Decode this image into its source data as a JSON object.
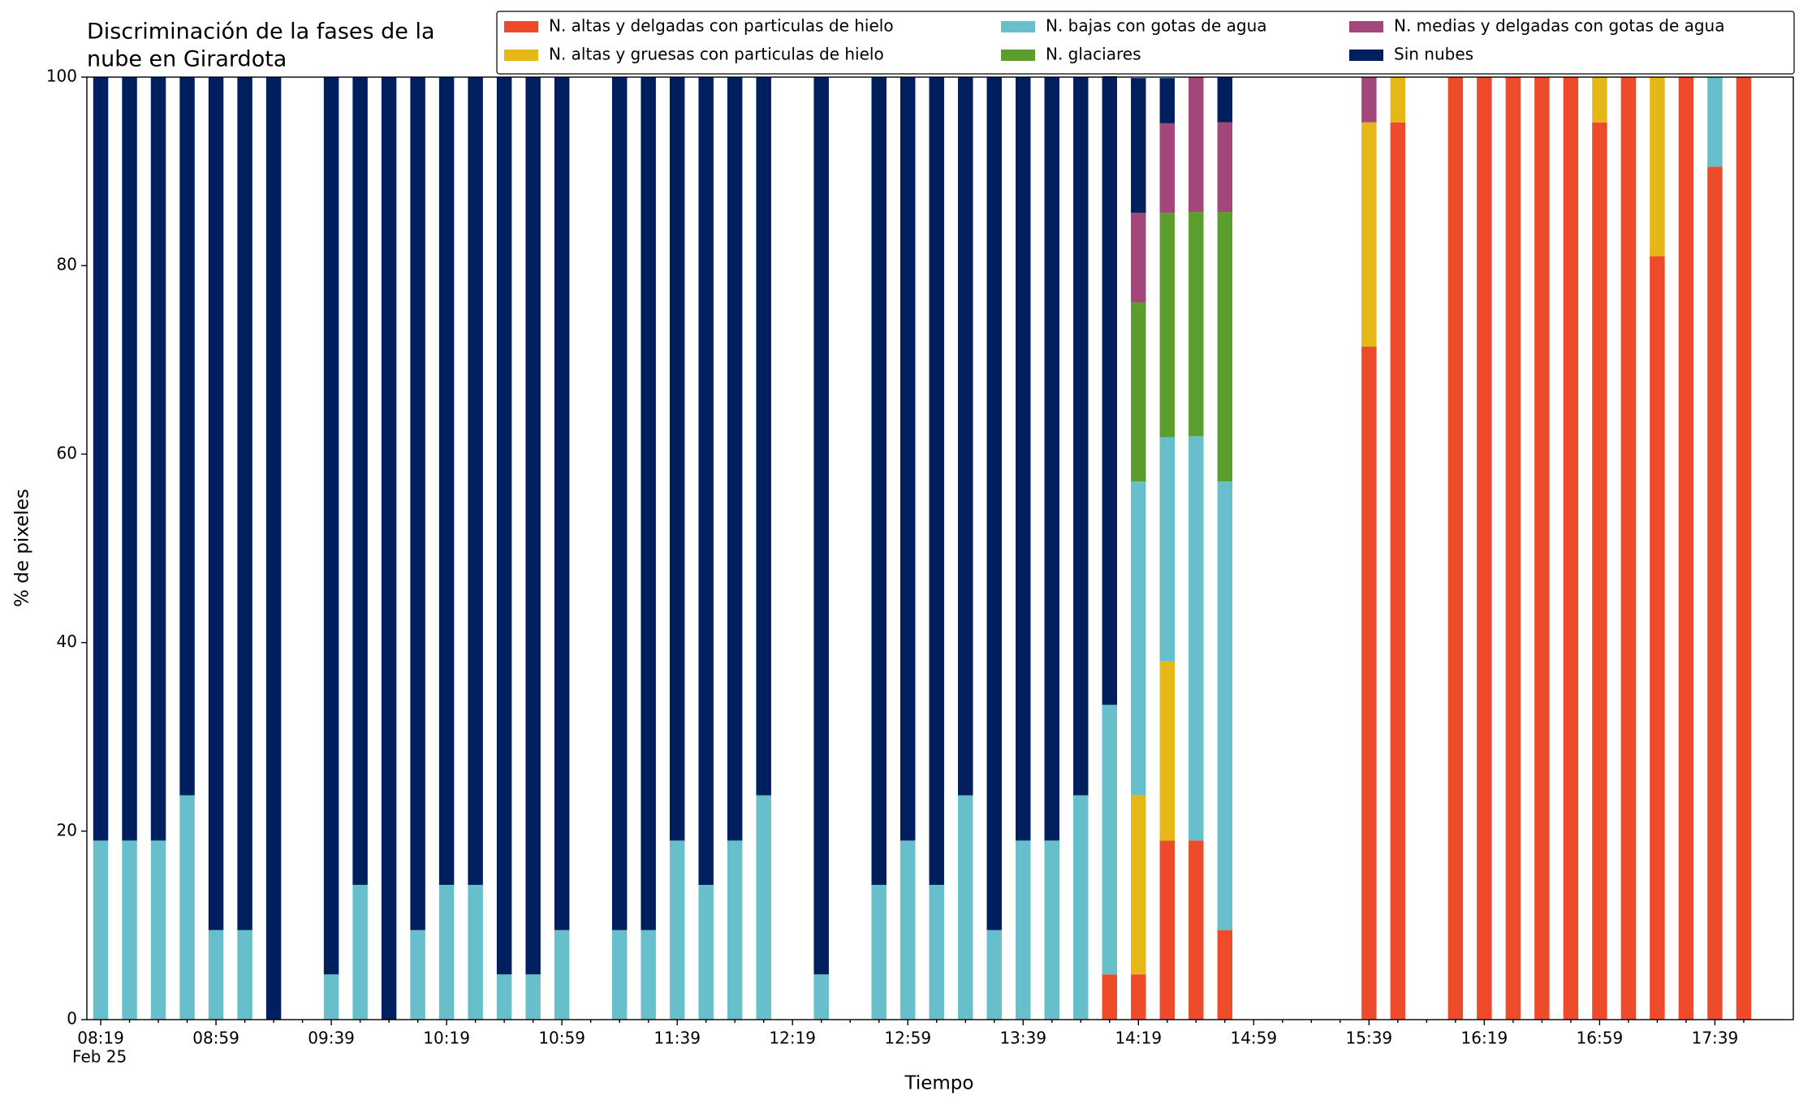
{
  "chart_data": {
    "type": "stacked_bar",
    "title": [
      "Discriminación de la fases de la",
      "nube en Girardota"
    ],
    "xlabel": "Tiempo",
    "ylabel": "% de pixeles",
    "date_label": "Feb 25",
    "categories": [
      "08:19",
      null,
      null,
      null,
      "08:59",
      null,
      null,
      null,
      "09:39",
      null,
      null,
      null,
      "10:19",
      null,
      null,
      null,
      "10:59",
      null,
      null,
      null,
      "11:39",
      null,
      null,
      null,
      "12:19",
      null,
      null,
      null,
      "12:59",
      null,
      null,
      null,
      "13:39",
      null,
      null,
      null,
      "14:19",
      null,
      null,
      null,
      "14:59",
      null,
      null,
      null,
      "15:39",
      null,
      null,
      null,
      "16:19",
      null,
      null,
      null,
      "16:59",
      null,
      null,
      null,
      "17:39",
      null
    ],
    "ylim": [
      0,
      100
    ],
    "yticks": [
      0,
      20,
      40,
      60,
      80,
      100
    ],
    "grid": false,
    "legend": "top",
    "series": [
      {
        "name": "N. altas y delgadas con particulas de hielo",
        "color": "#ee4b2b",
        "values": [
          0,
          0,
          0,
          0,
          0,
          0,
          0,
          0,
          0,
          0,
          0,
          0,
          0,
          0,
          0,
          0,
          0,
          0,
          0,
          0,
          0,
          0,
          0,
          0,
          0,
          0,
          0,
          0,
          0,
          0,
          0,
          0,
          0,
          0,
          0,
          4.8,
          4.8,
          19,
          19,
          9.5,
          0,
          0,
          0,
          0,
          71.4,
          95.2,
          0,
          100,
          100,
          100,
          100,
          100,
          95.2,
          100,
          81,
          100,
          90.5,
          100
        ]
      },
      {
        "name": "N. altas y gruesas con particulas de hielo",
        "color": "#e6b817",
        "values": [
          0,
          0,
          0,
          0,
          0,
          0,
          0,
          0,
          0,
          0,
          0,
          0,
          0,
          0,
          0,
          0,
          0,
          0,
          0,
          0,
          0,
          0,
          0,
          0,
          0,
          0,
          0,
          0,
          0,
          0,
          0,
          0,
          0,
          0,
          0,
          0,
          19,
          19,
          0,
          0,
          0,
          0,
          0,
          0,
          23.8,
          4.8,
          0,
          0,
          0,
          0,
          0,
          0,
          4.8,
          0,
          19,
          0,
          0,
          0
        ]
      },
      {
        "name": "N. bajas con gotas de agua",
        "color": "#66bfca",
        "values": [
          19,
          19,
          19,
          23.8,
          9.5,
          9.5,
          0,
          0,
          4.8,
          14.3,
          0,
          9.5,
          14.3,
          14.3,
          4.8,
          4.8,
          9.5,
          0,
          9.5,
          9.5,
          19,
          14.3,
          19,
          23.8,
          0,
          4.8,
          0,
          14.3,
          19,
          14.3,
          23.8,
          9.5,
          19,
          19,
          23.8,
          28.6,
          33.3,
          23.8,
          42.9,
          47.6,
          0,
          0,
          0,
          0,
          0,
          0,
          0,
          0,
          0,
          0,
          0,
          0,
          0,
          0,
          0,
          0,
          9.5,
          0
        ]
      },
      {
        "name": "N. glaciares",
        "color": "#5c9e2e",
        "values": [
          0,
          0,
          0,
          0,
          0,
          0,
          0,
          0,
          0,
          0,
          0,
          0,
          0,
          0,
          0,
          0,
          0,
          0,
          0,
          0,
          0,
          0,
          0,
          0,
          0,
          0,
          0,
          0,
          0,
          0,
          0,
          0,
          0,
          0,
          0,
          0,
          19,
          23.8,
          23.8,
          28.6,
          0,
          0,
          0,
          0,
          0,
          0,
          0,
          0,
          0,
          0,
          0,
          0,
          0,
          0,
          0,
          0,
          0,
          0
        ]
      },
      {
        "name": "N. medias y delgadas con gotas de agua",
        "color": "#a3467a",
        "values": [
          0,
          0,
          0,
          0,
          0,
          0,
          0,
          0,
          0,
          0,
          0,
          0,
          0,
          0,
          0,
          0,
          0,
          0,
          0,
          0,
          0,
          0,
          0,
          0,
          0,
          0,
          0,
          0,
          0,
          0,
          0,
          0,
          0,
          0,
          0,
          0,
          9.5,
          9.5,
          14.3,
          9.5,
          0,
          0,
          0,
          0,
          4.8,
          0,
          0,
          0,
          0,
          0,
          0,
          0,
          0,
          0,
          0,
          0,
          0,
          0
        ]
      },
      {
        "name": "Sin nubes",
        "color": "#001f5f",
        "values": [
          81,
          81,
          81,
          76.2,
          90.5,
          90.5,
          100,
          0,
          95.2,
          85.7,
          100,
          90.5,
          85.7,
          85.7,
          95.2,
          95.2,
          90.5,
          0,
          90.5,
          90.5,
          81,
          85.7,
          81,
          76.2,
          0,
          95.2,
          0,
          85.7,
          81,
          85.7,
          76.2,
          90.5,
          81,
          81,
          76.2,
          66.7,
          14.3,
          4.8,
          0,
          4.8,
          0,
          0,
          0,
          0,
          0,
          0,
          0,
          0,
          0,
          0,
          0,
          0,
          0,
          0,
          0,
          0,
          0,
          0
        ]
      }
    ]
  }
}
